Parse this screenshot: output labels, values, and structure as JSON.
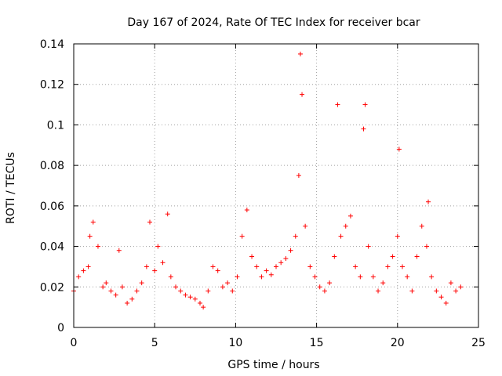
{
  "chart_data": {
    "type": "scatter",
    "title": "Day 167 of 2024, Rate Of TEC Index for receiver bcar",
    "xlabel": "GPS time / hours",
    "ylabel": "ROTI / TECUs",
    "xlim": [
      0,
      25
    ],
    "ylim": [
      0,
      0.14
    ],
    "x_ticks": [
      0,
      5,
      10,
      15,
      20,
      25
    ],
    "y_ticks": [
      0,
      0.02,
      0.04,
      0.06,
      0.08,
      0.1,
      0.12,
      0.14
    ],
    "x_tick_labels": [
      "0",
      "5",
      "10",
      "15",
      "20",
      "25"
    ],
    "y_tick_labels": [
      "0",
      "0.02",
      "0.04",
      "0.06",
      "0.08",
      "0.1",
      "0.12",
      "0.14"
    ],
    "grid": true,
    "marker": "+",
    "color": "#ff0000",
    "series": [
      {
        "name": "ROTI",
        "x": [
          0.0,
          0.3,
          0.6,
          0.9,
          1.0,
          1.2,
          1.5,
          1.8,
          2.0,
          2.3,
          2.6,
          2.8,
          3.0,
          3.3,
          3.6,
          3.9,
          4.2,
          4.5,
          4.7,
          5.0,
          5.2,
          5.5,
          5.8,
          6.0,
          6.3,
          6.6,
          6.9,
          7.2,
          7.5,
          7.8,
          8.0,
          8.3,
          8.6,
          8.9,
          9.2,
          9.5,
          9.8,
          10.1,
          10.4,
          10.7,
          11.0,
          11.3,
          11.6,
          11.9,
          12.2,
          12.5,
          12.8,
          13.1,
          13.4,
          13.7,
          13.9,
          14.0,
          14.1,
          14.3,
          14.6,
          14.9,
          15.2,
          15.5,
          15.8,
          16.1,
          16.3,
          16.5,
          16.8,
          17.1,
          17.4,
          17.7,
          17.9,
          18.0,
          18.2,
          18.5,
          18.8,
          19.1,
          19.4,
          19.7,
          20.0,
          20.1,
          20.3,
          20.6,
          20.9,
          21.2,
          21.5,
          21.8,
          21.9,
          22.1,
          22.4,
          22.7,
          23.0,
          23.3,
          23.6,
          23.9
        ],
        "y": [
          0.018,
          0.025,
          0.028,
          0.03,
          0.045,
          0.052,
          0.04,
          0.02,
          0.022,
          0.018,
          0.016,
          0.038,
          0.02,
          0.012,
          0.014,
          0.018,
          0.022,
          0.03,
          0.052,
          0.028,
          0.04,
          0.032,
          0.056,
          0.025,
          0.02,
          0.018,
          0.016,
          0.015,
          0.014,
          0.012,
          0.01,
          0.018,
          0.03,
          0.028,
          0.02,
          0.022,
          0.018,
          0.025,
          0.045,
          0.058,
          0.035,
          0.03,
          0.025,
          0.028,
          0.026,
          0.03,
          0.032,
          0.034,
          0.038,
          0.045,
          0.075,
          0.135,
          0.115,
          0.05,
          0.03,
          0.025,
          0.02,
          0.018,
          0.022,
          0.035,
          0.11,
          0.045,
          0.05,
          0.055,
          0.03,
          0.025,
          0.098,
          0.11,
          0.04,
          0.025,
          0.018,
          0.022,
          0.03,
          0.035,
          0.045,
          0.088,
          0.03,
          0.025,
          0.018,
          0.035,
          0.05,
          0.04,
          0.062,
          0.025,
          0.018,
          0.015,
          0.012,
          0.022,
          0.018,
          0.02
        ]
      }
    ]
  }
}
